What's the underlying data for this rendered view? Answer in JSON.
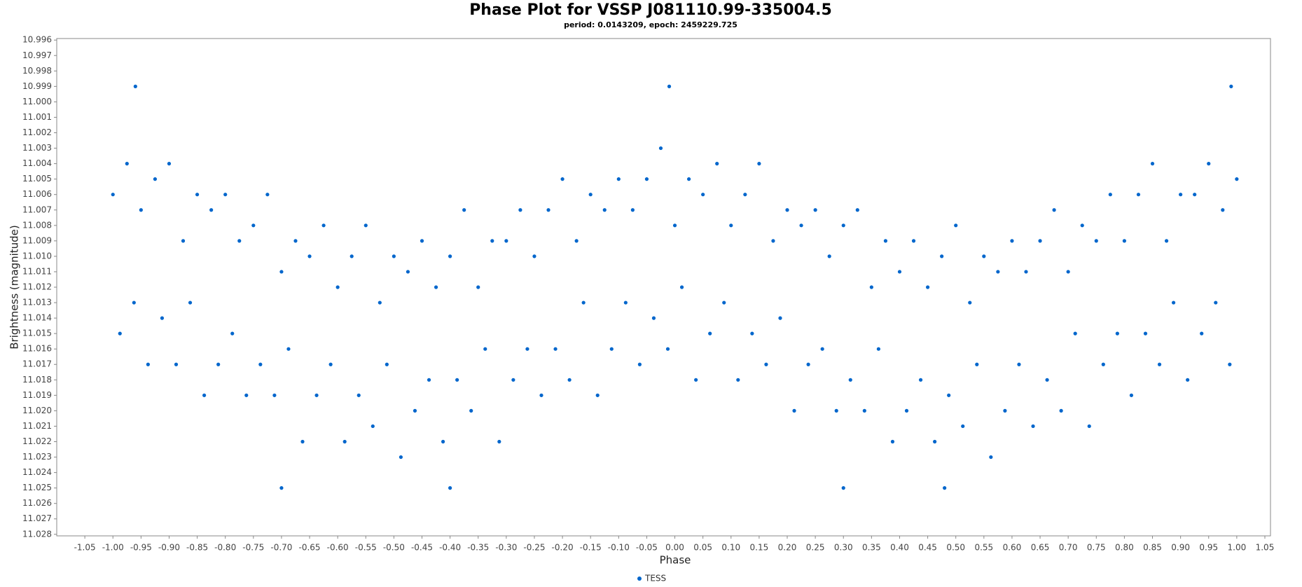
{
  "chart_data": {
    "type": "scatter",
    "title": "Phase Plot for VSSP J081110.99-335004.5",
    "subtitle": "period: 0.0143209, epoch: 2459229.725",
    "x_label": "Phase",
    "y_label": "Brightness (magnitude)",
    "xlim": [
      -1.1,
      1.06
    ],
    "ylim": [
      10.9959,
      11.0281
    ],
    "y_inverted": true,
    "grid": false,
    "legend": "bottom",
    "xticks": [
      -1.05,
      {
        "value": -1,
        "label": "-1.00"
      },
      -0.95,
      {
        "value": -0.9,
        "label": "-0.90"
      },
      -0.85,
      {
        "value": -0.8,
        "label": "-0.80"
      },
      -0.75,
      {
        "value": -0.7,
        "label": "-0.70"
      },
      -0.65,
      {
        "value": -0.6,
        "label": "-0.60"
      },
      -0.55,
      {
        "value": -0.5,
        "label": "-0.50"
      },
      -0.45,
      {
        "value": -0.4,
        "label": "-0.40"
      },
      -0.35,
      {
        "value": -0.3,
        "label": "-0.30"
      },
      -0.25,
      {
        "value": -0.2,
        "label": "-0.20"
      },
      -0.15,
      {
        "value": -0.1,
        "label": "-0.10"
      },
      -0.05,
      {
        "value": 0,
        "label": "0.00"
      },
      0.05,
      {
        "value": 0.1,
        "label": "0.10"
      },
      0.15,
      {
        "value": 0.2,
        "label": "0.20"
      },
      0.25,
      {
        "value": 0.3,
        "label": "0.30"
      },
      0.35,
      {
        "value": 0.4,
        "label": "0.40"
      },
      0.45,
      {
        "value": 0.5,
        "label": "0.50"
      },
      0.55,
      {
        "value": 0.6,
        "label": "0.60"
      },
      0.65,
      {
        "value": 0.7,
        "label": "0.70"
      },
      0.75,
      {
        "value": 0.8,
        "label": "0.80"
      },
      0.85,
      {
        "value": 0.9,
        "label": "0.90"
      },
      0.95,
      {
        "value": 1,
        "label": "1.00"
      },
      1.05
    ],
    "yticks": [
      10.996,
      10.997,
      10.998,
      10.999,
      {
        "value": 11,
        "label": "11.000"
      },
      11.001,
      11.002,
      11.003,
      11.004,
      11.005,
      11.006,
      11.007,
      11.008,
      11.009,
      {
        "value": 11.01,
        "label": "11.010"
      },
      11.011,
      11.012,
      11.013,
      11.014,
      11.015,
      11.016,
      11.017,
      11.018,
      11.019,
      {
        "value": 11.02,
        "label": "11.020"
      },
      11.021,
      11.022,
      11.023,
      11.024,
      11.025,
      11.026,
      11.027,
      11.028
    ],
    "series": [
      {
        "name": "TESS",
        "color": "#0066cc",
        "x": [
          -1,
          -0.975,
          -0.95,
          -0.925,
          -0.9,
          -0.875,
          -0.85,
          -0.825,
          -0.8,
          -0.775,
          -0.75,
          -0.725,
          -0.7,
          -0.675,
          -0.65,
          -0.625,
          -0.6,
          -0.575,
          -0.55,
          -0.525,
          -0.5,
          -0.475,
          -0.45,
          -0.425,
          -0.4,
          -0.375,
          -0.35,
          -0.325,
          -0.3,
          -0.275,
          -0.25,
          -0.225,
          -0.2,
          -0.175,
          -0.15,
          -0.125,
          -0.1,
          -0.075,
          -0.05,
          -0.025,
          0,
          0.025,
          0.05,
          0.075,
          0.1,
          0.125,
          0.15,
          0.175,
          0.2,
          0.225,
          0.25,
          0.275,
          0.3,
          0.325,
          0.35,
          0.375,
          0.4,
          0.425,
          0.45,
          0.475,
          0.5,
          0.525,
          0.55,
          0.575,
          0.6,
          0.625,
          0.65,
          0.675,
          0.7,
          0.725,
          0.75,
          0.775,
          0.8,
          0.825,
          0.85,
          0.875,
          0.9,
          0.925,
          0.95,
          0.975,
          1,
          -0.9875,
          -0.9625,
          -0.9375,
          -0.9125,
          -0.8875,
          -0.8625,
          -0.8375,
          -0.8125,
          -0.7875,
          -0.7625,
          -0.7375,
          -0.7125,
          -0.6875,
          -0.6625,
          -0.6375,
          -0.6125,
          -0.5875,
          -0.5625,
          -0.5375,
          -0.5125,
          -0.4875,
          -0.4625,
          -0.4375,
          -0.4125,
          -0.3875,
          -0.3625,
          -0.3375,
          -0.3125,
          -0.2875,
          -0.2625,
          -0.2375,
          -0.2125,
          -0.1875,
          -0.1625,
          -0.1375,
          -0.1125,
          -0.0875,
          -0.0625,
          -0.0375,
          -0.0125,
          0.0125,
          0.0375,
          0.0625,
          0.0875,
          0.1125,
          0.1375,
          0.1625,
          0.1875,
          0.2125,
          0.2375,
          0.2625,
          0.2875,
          0.3125,
          0.3375,
          0.3625,
          0.3875,
          0.4125,
          0.4375,
          0.4625,
          0.4875,
          0.5125,
          0.5375,
          0.5625,
          0.5875,
          0.6125,
          0.6375,
          0.6625,
          0.6875,
          0.7125,
          0.7375,
          0.7625,
          0.7875,
          0.8125,
          0.8375,
          0.8625,
          0.8875,
          0.9125,
          0.9375,
          0.9625,
          0.9875,
          -0.96,
          -0.01,
          0.99,
          -0.7,
          0.48,
          0.3,
          -0.4
        ],
        "values": [
          11.006,
          11.004,
          11.007,
          11.005,
          11.004,
          11.009,
          11.006,
          11.007,
          11.006,
          11.009,
          11.008,
          11.006,
          11.011,
          11.009,
          11.01,
          11.008,
          11.012,
          11.01,
          11.008,
          11.013,
          11.01,
          11.011,
          11.009,
          11.012,
          11.01,
          11.007,
          11.012,
          11.009,
          11.009,
          11.007,
          11.01,
          11.007,
          11.005,
          11.009,
          11.006,
          11.007,
          11.005,
          11.007,
          11.005,
          11.003,
          11.008,
          11.005,
          11.006,
          11.004,
          11.008,
          11.006,
          11.004,
          11.009,
          11.007,
          11.008,
          11.007,
          11.01,
          11.008,
          11.007,
          11.012,
          11.009,
          11.011,
          11.009,
          11.012,
          11.01,
          11.008,
          11.013,
          11.01,
          11.011,
          11.009,
          11.011,
          11.009,
          11.007,
          11.011,
          11.008,
          11.009,
          11.006,
          11.009,
          11.006,
          11.004,
          11.009,
          11.006,
          11.006,
          11.004,
          11.007,
          11.005,
          11.015,
          11.013,
          11.017,
          11.014,
          11.017,
          11.013,
          11.019,
          11.017,
          11.015,
          11.019,
          11.017,
          11.019,
          11.016,
          11.022,
          11.019,
          11.017,
          11.022,
          11.019,
          11.021,
          11.017,
          11.023,
          11.02,
          11.018,
          11.022,
          11.018,
          11.02,
          11.016,
          11.022,
          11.018,
          11.016,
          11.019,
          11.016,
          11.018,
          11.013,
          11.019,
          11.016,
          11.013,
          11.017,
          11.014,
          11.016,
          11.012,
          11.018,
          11.015,
          11.013,
          11.018,
          11.015,
          11.017,
          11.014,
          11.02,
          11.017,
          11.016,
          11.02,
          11.018,
          11.02,
          11.016,
          11.022,
          11.02,
          11.018,
          11.022,
          11.019,
          11.021,
          11.017,
          11.023,
          11.02,
          11.017,
          11.021,
          11.018,
          11.02,
          11.015,
          11.021,
          11.017,
          11.015,
          11.019,
          11.015,
          11.017,
          11.013,
          11.018,
          11.015,
          11.013,
          11.017,
          10.999,
          10.999,
          10.999,
          11.025,
          11.025,
          11.025,
          11.025
        ]
      }
    ]
  }
}
